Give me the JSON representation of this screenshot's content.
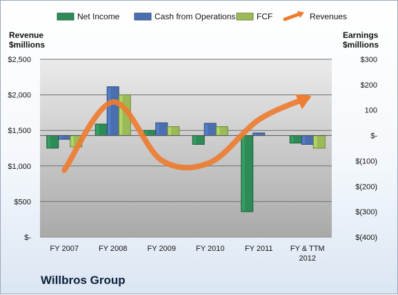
{
  "company": "Willbros Group",
  "chart_data": {
    "type": "bar",
    "categories": [
      "FY 2007",
      "FY 2008",
      "FY 2009",
      "FY 2010",
      "FY 2011",
      "FY & TTM|2012"
    ],
    "left_axis": {
      "title_lines": [
        "Revenue",
        "$millions"
      ],
      "range": [
        0,
        2500
      ],
      "ticks": [
        {
          "v": 0,
          "label": "$-"
        },
        {
          "v": 500,
          "label": "$500"
        },
        {
          "v": 1000,
          "label": "$1,000"
        },
        {
          "v": 1500,
          "label": "$1,500"
        },
        {
          "v": 2000,
          "label": "$2,000"
        },
        {
          "v": 2500,
          "label": "$2,500"
        }
      ]
    },
    "right_axis": {
      "title_lines": [
        "Earnings",
        "$millions"
      ],
      "range": [
        -400,
        300
      ],
      "ticks": [
        {
          "v": -400,
          "label": "$(400)"
        },
        {
          "v": -300,
          "label": "$(300)"
        },
        {
          "v": -200,
          "label": "$(200)"
        },
        {
          "v": -100,
          "label": "$(100)"
        },
        {
          "v": 0,
          "label": "$-"
        },
        {
          "v": 100,
          "label": "100"
        },
        {
          "v": 200,
          "label": "$200"
        },
        {
          "v": 300,
          "label": "$300"
        }
      ]
    },
    "series": [
      {
        "name": "Net Income",
        "axis": "right",
        "color": "#2e8b57",
        "values": [
          -50,
          45,
          20,
          -35,
          -300,
          -30
        ]
      },
      {
        "name": "Cash from Operations",
        "axis": "right",
        "color": "#4a6fb0",
        "values": [
          -15,
          192,
          50,
          48,
          10,
          -35
        ]
      },
      {
        "name": "FCF",
        "axis": "right",
        "color": "#9bbb59",
        "values": [
          -45,
          160,
          35,
          35,
          0,
          -50
        ]
      },
      {
        "name": "Revenues",
        "axis": "left",
        "color": "#ed7d31",
        "values": [
          940,
          1900,
          1080,
          1050,
          1650,
          1960
        ]
      }
    ],
    "grid": true,
    "legend_position": "top"
  }
}
